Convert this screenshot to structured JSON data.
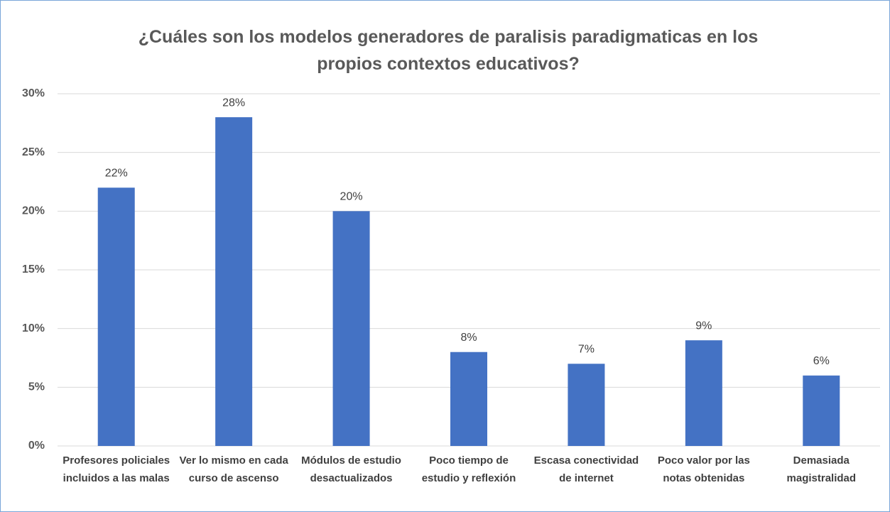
{
  "chart_data": {
    "type": "bar",
    "title": "¿Cuáles son los modelos generadores de paralisis paradigmaticas en los propios contextos educativos?",
    "categories": [
      "Profesores policiales incluidos a las malas",
      "Ver lo mismo en cada curso de ascenso",
      "Módulos de estudio desactualizados",
      "Poco tiempo de estudio y reflexión",
      "Escasa conectividad de internet",
      "Poco valor por las notas obtenidas",
      "Demasiada magistralidad"
    ],
    "values": [
      22,
      28,
      20,
      8,
      7,
      9,
      6
    ],
    "value_labels": [
      "22%",
      "28%",
      "20%",
      "8%",
      "7%",
      "9%",
      "6%"
    ],
    "color": "#4472c4",
    "ylim": [
      0,
      30
    ],
    "yticks": [
      {
        "value": 0,
        "label": "0%"
      },
      {
        "value": 5,
        "label": "5%"
      },
      {
        "value": 10,
        "label": "10%"
      },
      {
        "value": 15,
        "label": "15%"
      },
      {
        "value": 20,
        "label": "20%"
      },
      {
        "value": 25,
        "label": "25%"
      },
      {
        "value": 30,
        "label": "30%"
      }
    ],
    "grid": true
  }
}
